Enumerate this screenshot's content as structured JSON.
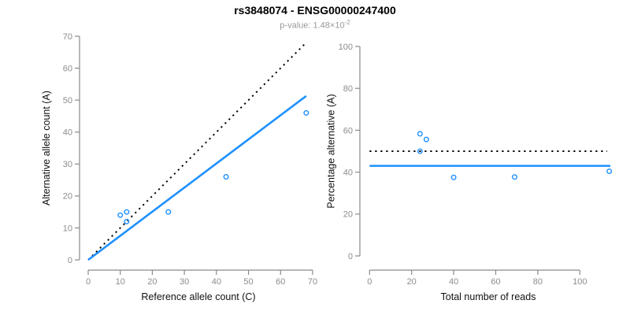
{
  "header": {
    "title": "rs3848074 - ENSG00000247400",
    "subtitle_prefix": "p-value: 1.48×10",
    "subtitle_exponent": "-2"
  },
  "colors": {
    "accent_blue": "#1E90FF",
    "axis_gray": "#8a8a8a",
    "tick_label_gray": "#8c8c8c",
    "axis_title_color": "#111111",
    "dotted_black": "#000000",
    "subtitle_gray": "#999999"
  },
  "chart_data": [
    {
      "type": "scatter",
      "panel": "left",
      "xlabel": "Reference allele count (C)",
      "ylabel": "Alternative allele count (A)",
      "xlim": [
        0,
        70
      ],
      "ylim": [
        0,
        70
      ],
      "xticks": [
        0,
        10,
        20,
        30,
        40,
        50,
        60,
        70
      ],
      "yticks": [
        0,
        10,
        20,
        30,
        40,
        50,
        60,
        70
      ],
      "grid": false,
      "marker": "open-circle",
      "points": [
        [
          10,
          14
        ],
        [
          12,
          15
        ],
        [
          12,
          12
        ],
        [
          25,
          15
        ],
        [
          43,
          26
        ],
        [
          68,
          46
        ]
      ],
      "lines": [
        {
          "name": "identity-line",
          "style": "dotted",
          "color": "#000000",
          "x1": 0,
          "y1": 0,
          "x2": 68,
          "y2": 68
        },
        {
          "name": "fitted-ratio-line",
          "style": "solid",
          "color": "#1E90FF",
          "x1": 0,
          "y1": 0,
          "x2": 68,
          "y2": 51.3
        }
      ]
    },
    {
      "type": "scatter",
      "panel": "right",
      "xlabel": "Total number of reads",
      "ylabel": "Percentage alternative (A)",
      "xlim": [
        0,
        115
      ],
      "ylim": [
        0,
        100
      ],
      "xticks": [
        0,
        20,
        40,
        60,
        80,
        100
      ],
      "yticks": [
        0,
        20,
        40,
        60,
        80,
        100
      ],
      "grid": false,
      "marker": "open-circle",
      "points": [
        [
          24,
          58.3
        ],
        [
          27,
          55.6
        ],
        [
          24,
          50.0
        ],
        [
          40,
          37.5
        ],
        [
          69,
          37.7
        ],
        [
          114,
          40.4
        ]
      ],
      "lines": [
        {
          "name": "null-50pct-line",
          "style": "dotted",
          "color": "#000000",
          "x1": 0,
          "y1": 50,
          "x2": 113,
          "y2": 50
        },
        {
          "name": "estimated-ratio-line",
          "style": "solid",
          "color": "#1E90FF",
          "x1": 0,
          "y1": 43,
          "x2": 114.5,
          "y2": 43
        }
      ]
    }
  ]
}
